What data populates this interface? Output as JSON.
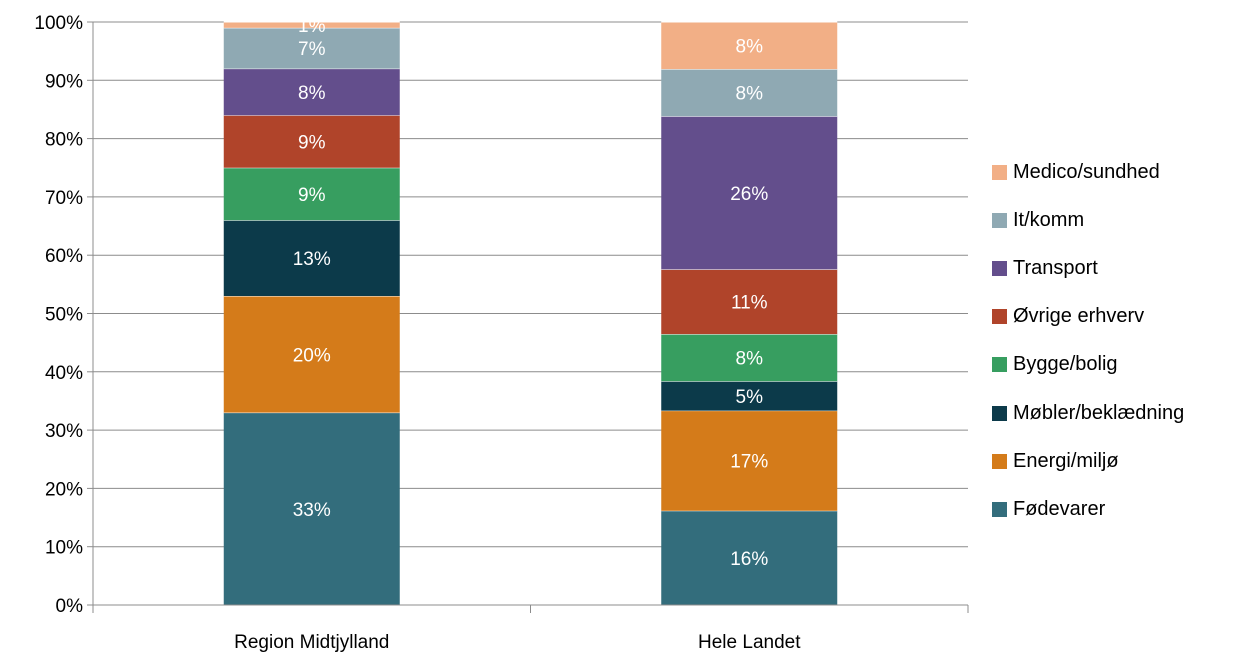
{
  "chart_data": {
    "type": "bar",
    "stacked": true,
    "percent": true,
    "categories": [
      "Region Midtjylland",
      "Hele Landet"
    ],
    "series": [
      {
        "name": "Fødevarer",
        "color": "#336D7C",
        "values": [
          33,
          16
        ],
        "labels": [
          "33%",
          "16%"
        ]
      },
      {
        "name": "Energi/miljø",
        "color": "#D47B1A",
        "values": [
          20,
          17
        ],
        "labels": [
          "20%",
          "17%"
        ]
      },
      {
        "name": "Møbler/beklædning",
        "color": "#0C3A4A",
        "values": [
          13,
          5
        ],
        "labels": [
          "13%",
          "5%"
        ]
      },
      {
        "name": "Bygge/bolig",
        "color": "#379E60",
        "values": [
          9,
          8
        ],
        "labels": [
          "9%",
          "8%"
        ]
      },
      {
        "name": "Øvrige erhverv",
        "color": "#B0442A",
        "values": [
          9,
          11
        ],
        "labels": [
          "9%",
          "11%"
        ]
      },
      {
        "name": "Transport",
        "color": "#634E8C",
        "values": [
          8,
          26
        ],
        "labels": [
          "8%",
          "26%"
        ]
      },
      {
        "name": "It/komm",
        "color": "#8FA9B3",
        "values": [
          7,
          8
        ],
        "labels": [
          "7%",
          "8%"
        ]
      },
      {
        "name": "Medico/sundhed",
        "color": "#F2AF86",
        "values": [
          1,
          8
        ],
        "labels": [
          "1%",
          "8%"
        ]
      }
    ],
    "yticks": [
      "0%",
      "10%",
      "20%",
      "30%",
      "40%",
      "50%",
      "60%",
      "70%",
      "80%",
      "90%",
      "100%"
    ],
    "ylim": [
      0,
      100
    ],
    "grid": true,
    "legend": "right",
    "title": "",
    "xlabel": "",
    "ylabel": ""
  }
}
